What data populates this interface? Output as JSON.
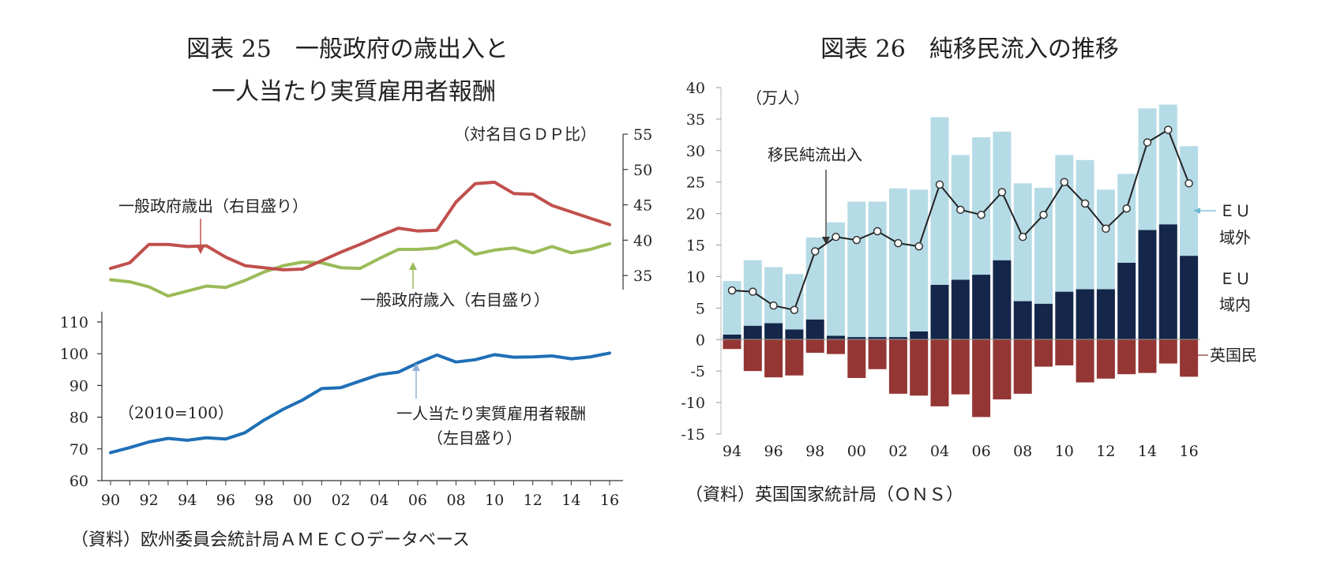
{
  "chart_data": [
    {
      "id": "fig25",
      "type": "line",
      "title_line1": "図表 25　一般政府の歳出入と",
      "title_line2": "一人当たり実質雇用者報酬",
      "x": [
        "90",
        "91",
        "92",
        "93",
        "94",
        "95",
        "96",
        "97",
        "98",
        "99",
        "00",
        "01",
        "02",
        "03",
        "04",
        "05",
        "06",
        "07",
        "08",
        "09",
        "10",
        "11",
        "12",
        "13",
        "14",
        "15",
        "16"
      ],
      "xtick_labels": [
        "90",
        "92",
        "94",
        "96",
        "98",
        "00",
        "02",
        "04",
        "06",
        "08",
        "10",
        "12",
        "14",
        "16"
      ],
      "upper": {
        "unit_label": "（対名目ＧＤＰ比）",
        "ylim": [
          33,
          55
        ],
        "yticks": [
          35,
          40,
          45,
          50,
          55
        ],
        "series": [
          {
            "name": "一般政府歳出（右目盛り）",
            "color": "#c0504d",
            "values": [
              36.0,
              36.8,
              39.4,
              39.4,
              39.1,
              39.2,
              37.6,
              36.4,
              36.1,
              35.8,
              35.9,
              37.1,
              38.3,
              39.4,
              40.6,
              41.7,
              41.3,
              41.4,
              45.4,
              48.0,
              48.2,
              46.6,
              46.5,
              44.9,
              44.0,
              43.1,
              42.2
            ]
          },
          {
            "name": "一般政府歳入（右目盛り）",
            "color": "#9bbb59",
            "values": [
              34.4,
              34.1,
              33.4,
              32.1,
              32.8,
              33.5,
              33.3,
              34.3,
              35.5,
              36.4,
              36.9,
              36.8,
              36.1,
              36.0,
              37.4,
              38.7,
              38.7,
              38.9,
              39.9,
              38.0,
              38.6,
              38.9,
              38.2,
              39.1,
              38.2,
              38.7,
              39.5
            ]
          }
        ],
        "annotation_exp": "一般政府歳出（右目盛り）",
        "annotation_rev": "一般政府歳入（右目盛り）"
      },
      "lower": {
        "unit_label": "（2010=100）",
        "ylim": [
          60,
          110
        ],
        "yticks": [
          60,
          70,
          80,
          90,
          100,
          110
        ],
        "series": [
          {
            "name": "一人当たり実質雇用者報酬",
            "color": "#1f6fb6",
            "values": [
              68.8,
              70.4,
              72.2,
              73.3,
              72.7,
              73.5,
              73.1,
              75.1,
              79.1,
              82.5,
              85.4,
              89.0,
              89.3,
              91.4,
              93.4,
              94.2,
              97.1,
              99.6,
              97.4,
              98.1,
              99.7,
              98.9,
              99.0,
              99.3,
              98.4,
              99.0,
              100.2
            ]
          }
        ],
        "annotation_line1": "一人当たり実質雇用者報酬",
        "annotation_line2": "（左目盛り）"
      },
      "source": "（資料）欧州委員会統計局ＡＭＥＣＯデータベース"
    },
    {
      "id": "fig26",
      "type": "bar",
      "stacked": true,
      "title": "図表 26　純移民流入の推移",
      "unit_label": "（万人）",
      "categories": [
        "94",
        "95",
        "96",
        "97",
        "98",
        "99",
        "00",
        "01",
        "02",
        "03",
        "04",
        "05",
        "06",
        "07",
        "08",
        "09",
        "10",
        "11",
        "12",
        "13",
        "14",
        "15",
        "16"
      ],
      "xtick_labels": [
        "94",
        "96",
        "98",
        "00",
        "02",
        "04",
        "06",
        "08",
        "10",
        "12",
        "14",
        "16"
      ],
      "ylim": [
        -15,
        40
      ],
      "yticks": [
        -15,
        -10,
        -5,
        0,
        5,
        10,
        15,
        20,
        25,
        30,
        35,
        40
      ],
      "series": [
        {
          "name": "ＥＵ域内",
          "color": "#14274a",
          "values": [
            0.8,
            2.2,
            2.6,
            1.6,
            3.2,
            0.6,
            0.4,
            0.4,
            0.4,
            1.3,
            8.7,
            9.5,
            10.3,
            12.6,
            6.1,
            5.7,
            7.6,
            8.0,
            8.0,
            12.2,
            17.4,
            18.3,
            13.3
          ]
        },
        {
          "name": "ＥＵ域外",
          "color": "#b5dbe6",
          "values": [
            8.5,
            10.4,
            8.9,
            8.8,
            13.0,
            18.0,
            21.5,
            21.5,
            23.6,
            22.5,
            26.6,
            19.8,
            21.8,
            20.4,
            18.7,
            18.4,
            21.7,
            20.5,
            15.8,
            14.1,
            19.3,
            19.0,
            17.4
          ]
        },
        {
          "name": "英国民",
          "color": "#943634",
          "values": [
            -1.5,
            -5.0,
            -6.0,
            -5.7,
            -2.1,
            -2.3,
            -6.1,
            -4.7,
            -8.6,
            -8.9,
            -10.6,
            -8.7,
            -12.3,
            -9.5,
            -8.6,
            -4.3,
            -4.1,
            -6.8,
            -6.2,
            -5.5,
            -5.3,
            -3.8,
            -5.9
          ]
        }
      ],
      "net_series": {
        "name": "移民純流出入",
        "color": "#222222",
        "values": [
          7.8,
          7.6,
          5.4,
          4.7,
          14.0,
          16.3,
          15.8,
          17.2,
          15.3,
          14.8,
          24.6,
          20.6,
          19.8,
          23.4,
          16.3,
          19.8,
          25.0,
          21.6,
          17.6,
          20.8,
          31.3,
          33.3,
          24.8
        ]
      },
      "annotation_net": "移民純流出入",
      "legend_eu_outside_1": "ＥＵ",
      "legend_eu_outside_2": "域外",
      "legend_eu_inside_1": "ＥＵ",
      "legend_eu_inside_2": "域内",
      "legend_uk": "英国民",
      "source": "（資料）英国国家統計局（ＯＮＳ）"
    }
  ]
}
